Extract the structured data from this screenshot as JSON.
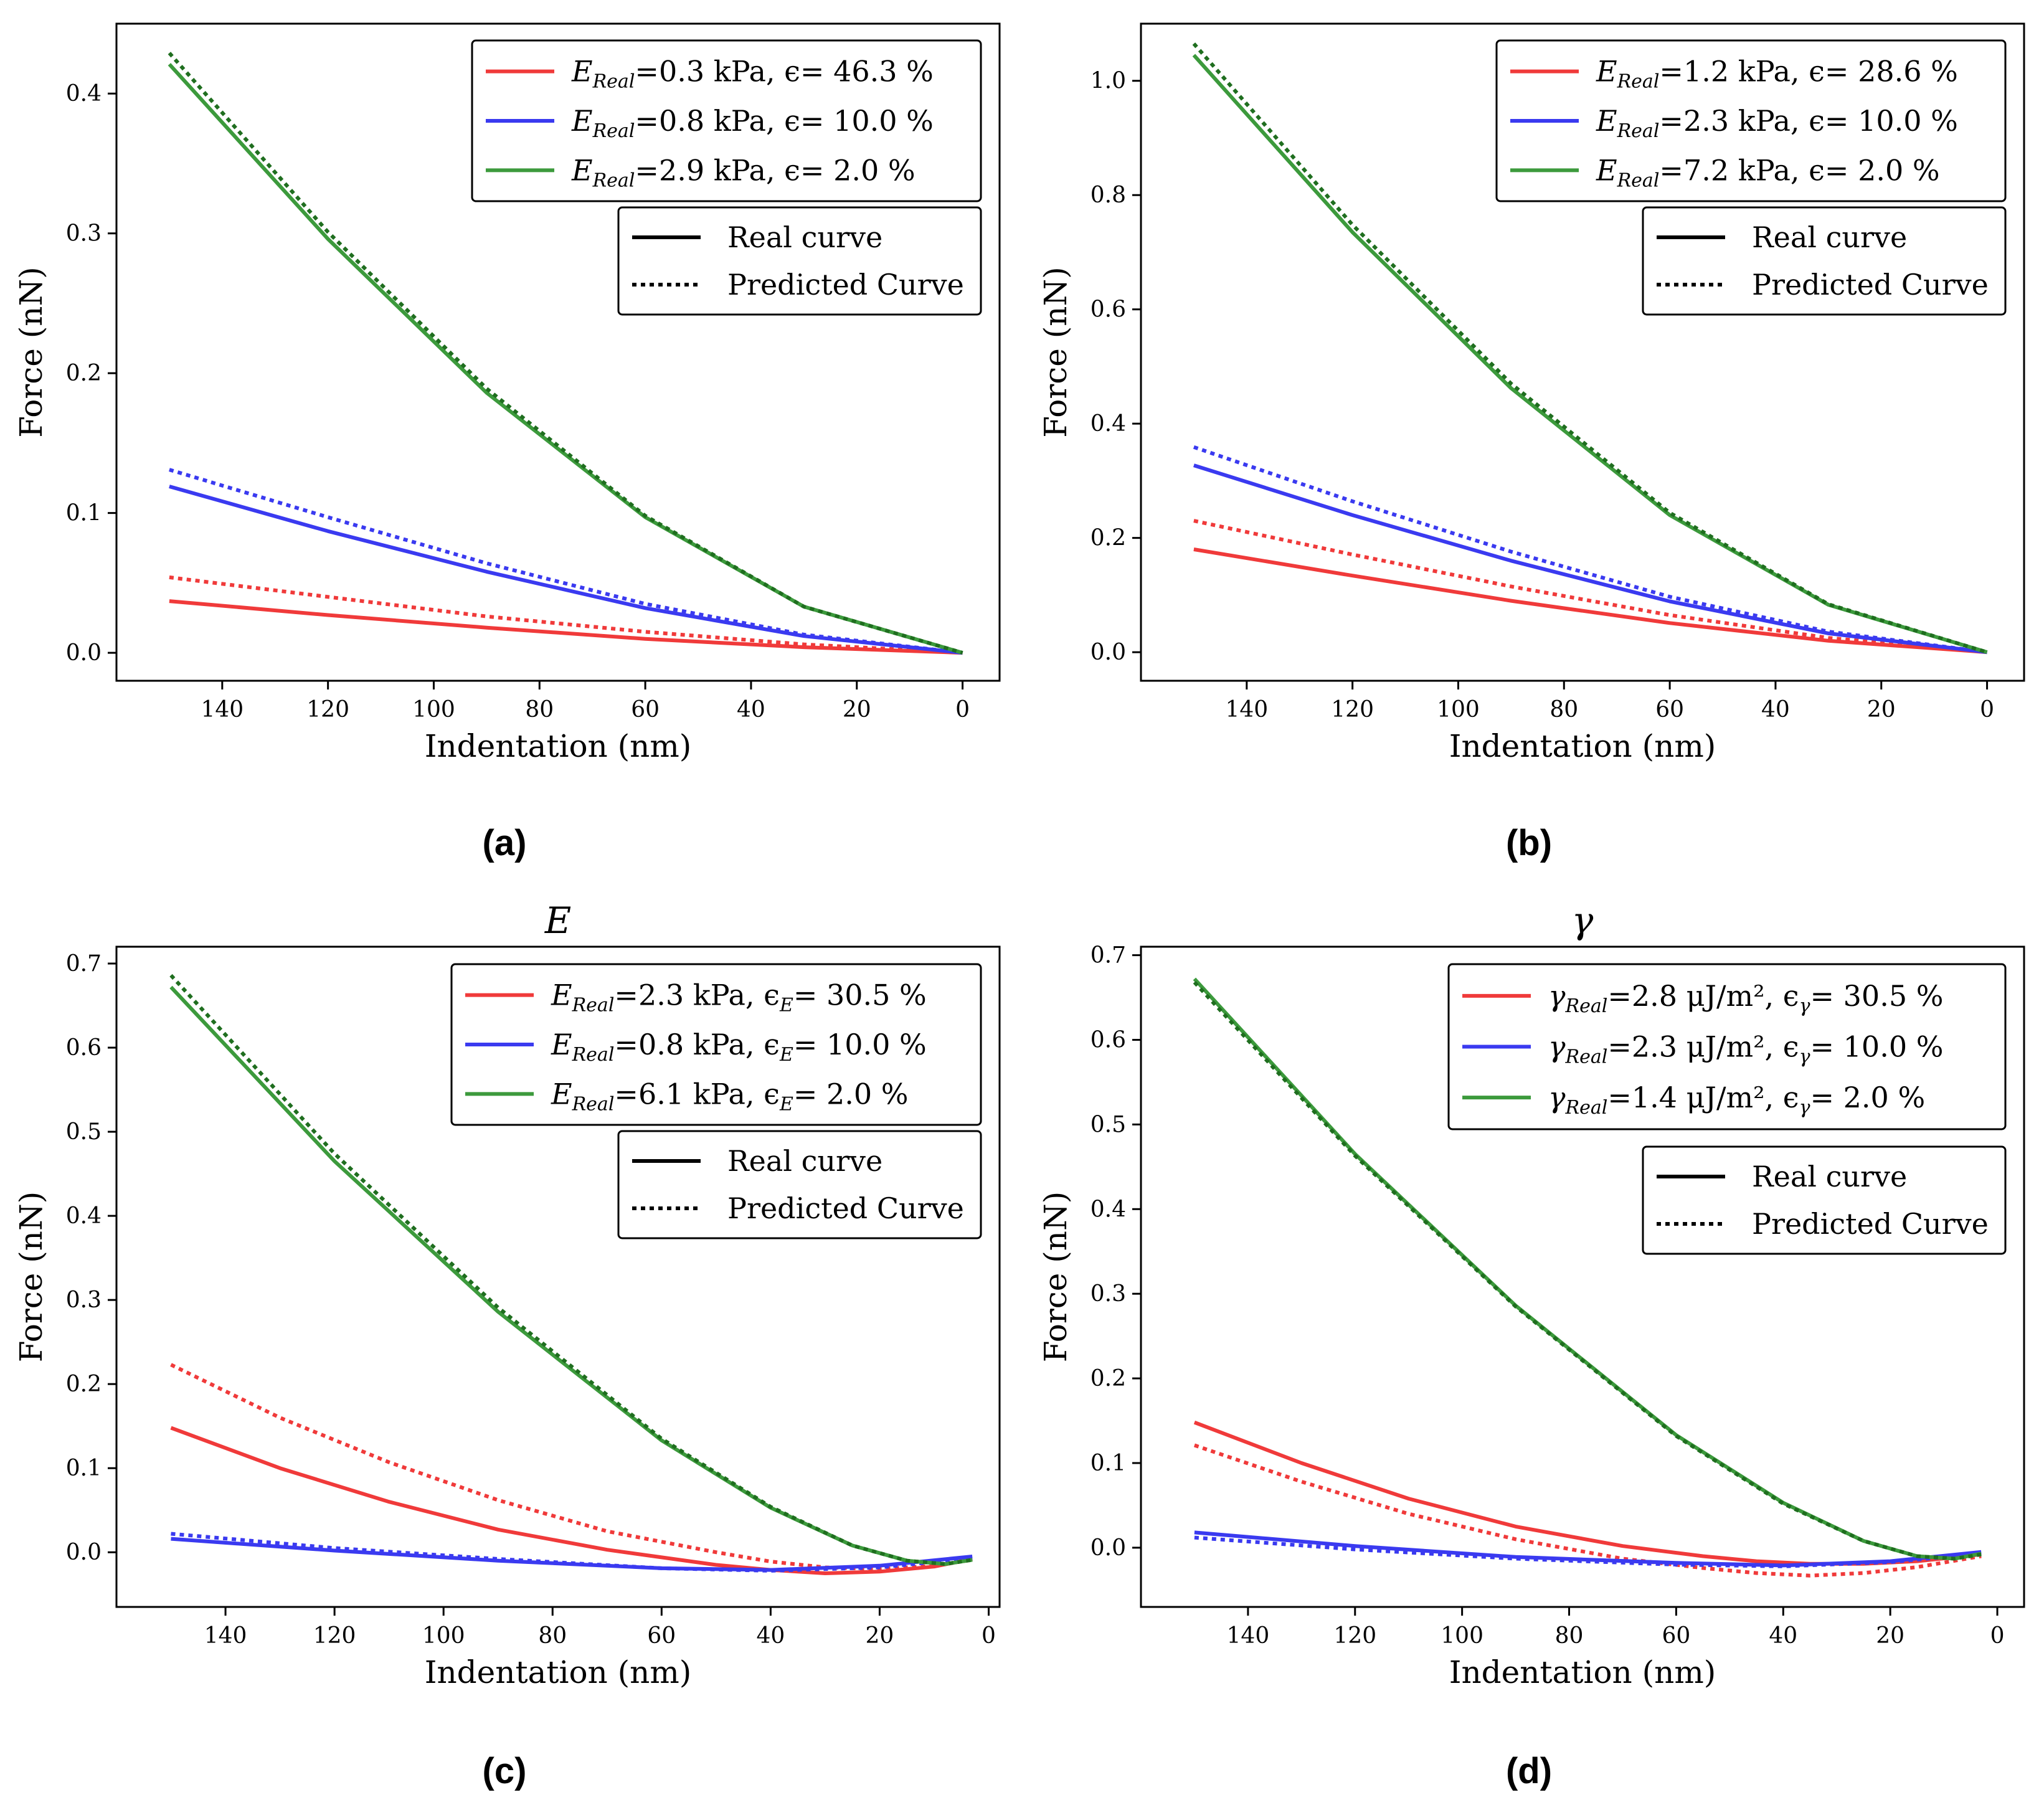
{
  "figure": {
    "panels": [
      {
        "id": "a",
        "caption": "(a)",
        "title": ""
      },
      {
        "id": "b",
        "caption": "(b)",
        "title": ""
      },
      {
        "id": "c",
        "caption": "(c)",
        "title": "E"
      },
      {
        "id": "d",
        "caption": "(d)",
        "title": "γ"
      }
    ]
  },
  "chart_data": [
    {
      "panel": "a",
      "type": "line",
      "title": "",
      "xlabel": "Indentation (nm)",
      "ylabel": "Force (nN)",
      "x_inverted": true,
      "xlim": [
        160,
        -7
      ],
      "ylim": [
        -0.02,
        0.45
      ],
      "xticks": [
        140,
        120,
        100,
        80,
        60,
        40,
        20,
        0
      ],
      "yticks": [
        0.0,
        0.1,
        0.2,
        0.3,
        0.4
      ],
      "ytick_decimals": 1,
      "legend_series": [
        {
          "label_sym": "E",
          "label_sub": "Real",
          "label_text": "=0.3 kPa, ϵ= 46.3 %",
          "color": "#f03a3a"
        },
        {
          "label_sym": "E",
          "label_sub": "Real",
          "label_text": "=0.8 kPa, ϵ= 10.0 %",
          "color": "#3a3af0"
        },
        {
          "label_sym": "E",
          "label_sub": "Real",
          "label_text": "=2.9 kPa, ϵ= 2.0 %",
          "color": "#3c9a3c"
        }
      ],
      "legend_style": [
        "Real curve",
        "Predicted Curve"
      ],
      "legend_placement": "top-right",
      "series": [
        {
          "name": "E_Real=0.3 kPa real",
          "color": "#f03a3a",
          "style": "solid",
          "x": [
            150,
            120,
            90,
            60,
            30,
            0
          ],
          "y": [
            0.037,
            0.027,
            0.018,
            0.01,
            0.004,
            0.0
          ]
        },
        {
          "name": "E_Real=0.3 kPa predicted",
          "color": "#f03a3a",
          "style": "dotted",
          "x": [
            150,
            120,
            90,
            60,
            30,
            0
          ],
          "y": [
            0.054,
            0.04,
            0.026,
            0.015,
            0.006,
            0.0
          ]
        },
        {
          "name": "E_Real=0.8 kPa real",
          "color": "#3a3af0",
          "style": "solid",
          "x": [
            150,
            120,
            90,
            60,
            30,
            0
          ],
          "y": [
            0.119,
            0.087,
            0.058,
            0.032,
            0.012,
            0.0
          ]
        },
        {
          "name": "E_Real=0.8 kPa predicted",
          "color": "#3a3af0",
          "style": "dotted",
          "x": [
            150,
            120,
            90,
            60,
            30,
            0
          ],
          "y": [
            0.131,
            0.097,
            0.064,
            0.035,
            0.013,
            0.0
          ]
        },
        {
          "name": "E_Real=2.9 kPa real",
          "color": "#3c9a3c",
          "style": "solid",
          "x": [
            150,
            120,
            90,
            60,
            30,
            0
          ],
          "y": [
            0.421,
            0.296,
            0.186,
            0.097,
            0.033,
            0.0
          ]
        },
        {
          "name": "E_Real=2.9 kPa predicted",
          "color": "#1f6e1f",
          "style": "dotted",
          "x": [
            150,
            120,
            90,
            60,
            30,
            0
          ],
          "y": [
            0.429,
            0.301,
            0.189,
            0.098,
            0.033,
            0.0
          ]
        }
      ]
    },
    {
      "panel": "b",
      "type": "line",
      "title": "",
      "xlabel": "Indentation (nm)",
      "ylabel": "Force (nN)",
      "x_inverted": true,
      "xlim": [
        160,
        -7
      ],
      "ylim": [
        -0.05,
        1.1
      ],
      "xticks": [
        140,
        120,
        100,
        80,
        60,
        40,
        20,
        0
      ],
      "yticks": [
        0.0,
        0.2,
        0.4,
        0.6,
        0.8,
        1.0
      ],
      "ytick_decimals": 1,
      "legend_series": [
        {
          "label_sym": "E",
          "label_sub": "Real",
          "label_text": "=1.2 kPa, ϵ= 28.6 %",
          "color": "#f03a3a"
        },
        {
          "label_sym": "E",
          "label_sub": "Real",
          "label_text": "=2.3 kPa, ϵ= 10.0 %",
          "color": "#3a3af0"
        },
        {
          "label_sym": "E",
          "label_sub": "Real",
          "label_text": "=7.2 kPa, ϵ= 2.0 %",
          "color": "#3c9a3c"
        }
      ],
      "legend_style": [
        "Real curve",
        "Predicted Curve"
      ],
      "legend_placement": "top-right",
      "series": [
        {
          "name": "E_Real=1.2 kPa real",
          "color": "#f03a3a",
          "style": "solid",
          "x": [
            150,
            120,
            90,
            60,
            30,
            0
          ],
          "y": [
            0.18,
            0.134,
            0.09,
            0.051,
            0.02,
            0.0
          ]
        },
        {
          "name": "E_Real=1.2 kPa predicted",
          "color": "#f03a3a",
          "style": "dotted",
          "x": [
            150,
            120,
            90,
            60,
            30,
            0
          ],
          "y": [
            0.23,
            0.171,
            0.115,
            0.065,
            0.025,
            0.0
          ]
        },
        {
          "name": "E_Real=2.3 kPa real",
          "color": "#3a3af0",
          "style": "solid",
          "x": [
            150,
            120,
            90,
            60,
            30,
            0
          ],
          "y": [
            0.327,
            0.24,
            0.16,
            0.089,
            0.033,
            0.0
          ]
        },
        {
          "name": "E_Real=2.3 kPa predicted",
          "color": "#3a3af0",
          "style": "dotted",
          "x": [
            150,
            120,
            90,
            60,
            30,
            0
          ],
          "y": [
            0.359,
            0.264,
            0.176,
            0.097,
            0.036,
            0.0
          ]
        },
        {
          "name": "E_Real=7.2 kPa real",
          "color": "#3c9a3c",
          "style": "solid",
          "x": [
            150,
            120,
            90,
            60,
            30,
            0
          ],
          "y": [
            1.045,
            0.735,
            0.462,
            0.24,
            0.083,
            0.0
          ]
        },
        {
          "name": "E_Real=7.2 kPa predicted",
          "color": "#1f6e1f",
          "style": "dotted",
          "x": [
            150,
            120,
            90,
            60,
            30,
            0
          ],
          "y": [
            1.065,
            0.748,
            0.47,
            0.244,
            0.084,
            0.0
          ]
        }
      ]
    },
    {
      "panel": "c",
      "type": "line",
      "title": "E",
      "xlabel": "Indentation (nm)",
      "ylabel": "Force (nN)",
      "x_inverted": true,
      "xlim": [
        160,
        -2
      ],
      "ylim": [
        -0.065,
        0.72
      ],
      "xticks": [
        140,
        120,
        100,
        80,
        60,
        40,
        20,
        0
      ],
      "yticks": [
        0.0,
        0.1,
        0.2,
        0.3,
        0.4,
        0.5,
        0.6,
        0.7
      ],
      "ytick_decimals": 1,
      "legend_series": [
        {
          "label_sym": "E",
          "label_sub": "Real",
          "label_text": "=2.3 kPa, ϵ",
          "label_sub2": "E",
          "label_text2": "= 30.5 %",
          "color": "#f03a3a"
        },
        {
          "label_sym": "E",
          "label_sub": "Real",
          "label_text": "=0.8 kPa, ϵ",
          "label_sub2": "E",
          "label_text2": "= 10.0 %",
          "color": "#3a3af0"
        },
        {
          "label_sym": "E",
          "label_sub": "Real",
          "label_text": "=6.1 kPa, ϵ",
          "label_sub2": "E",
          "label_text2": "= 2.0 %",
          "color": "#3c9a3c"
        }
      ],
      "legend_style": [
        "Real curve",
        "Predicted Curve"
      ],
      "legend_placement": "top-right",
      "series": [
        {
          "name": "E_Real=2.3 kPa real",
          "color": "#f03a3a",
          "style": "solid",
          "x": [
            150,
            130,
            110,
            90,
            70,
            50,
            40,
            30,
            20,
            10,
            3
          ],
          "y": [
            0.148,
            0.1,
            0.06,
            0.027,
            0.003,
            -0.015,
            -0.021,
            -0.025,
            -0.023,
            -0.017,
            -0.008
          ]
        },
        {
          "name": "E_Real=2.3 kPa predicted",
          "color": "#f03a3a",
          "style": "dotted",
          "x": [
            150,
            130,
            110,
            90,
            70,
            50,
            40,
            30,
            20,
            10,
            3
          ],
          "y": [
            0.223,
            0.16,
            0.107,
            0.062,
            0.025,
            0.0,
            -0.011,
            -0.018,
            -0.02,
            -0.016,
            -0.009
          ]
        },
        {
          "name": "E_Real=0.8 kPa real",
          "color": "#3a3af0",
          "style": "solid",
          "x": [
            150,
            120,
            90,
            60,
            40,
            20,
            3
          ],
          "y": [
            0.016,
            0.002,
            -0.01,
            -0.019,
            -0.021,
            -0.016,
            -0.005
          ]
        },
        {
          "name": "E_Real=0.8 kPa predicted",
          "color": "#3a3af0",
          "style": "dotted",
          "x": [
            150,
            120,
            90,
            60,
            40,
            20,
            3
          ],
          "y": [
            0.022,
            0.005,
            -0.008,
            -0.019,
            -0.022,
            -0.018,
            -0.007
          ]
        },
        {
          "name": "E_Real=6.1 kPa real",
          "color": "#3c9a3c",
          "style": "solid",
          "x": [
            150,
            120,
            90,
            60,
            40,
            25,
            15,
            8,
            3
          ],
          "y": [
            0.672,
            0.465,
            0.286,
            0.133,
            0.053,
            0.008,
            -0.01,
            -0.014,
            -0.009
          ]
        },
        {
          "name": "E_Real=6.1 kPa predicted",
          "color": "#1f6e1f",
          "style": "dotted",
          "x": [
            150,
            120,
            90,
            60,
            40,
            25,
            15,
            8,
            3
          ],
          "y": [
            0.686,
            0.474,
            0.291,
            0.135,
            0.054,
            0.008,
            -0.01,
            -0.014,
            -0.009
          ]
        }
      ]
    },
    {
      "panel": "d",
      "type": "line",
      "title": "γ",
      "xlabel": "Indentation (nm)",
      "ylabel": "Force (nN)",
      "x_inverted": true,
      "xlim": [
        160,
        -5
      ],
      "ylim": [
        -0.07,
        0.71
      ],
      "xticks": [
        140,
        120,
        100,
        80,
        60,
        40,
        20,
        0
      ],
      "yticks": [
        0.0,
        0.1,
        0.2,
        0.3,
        0.4,
        0.5,
        0.6,
        0.7
      ],
      "ytick_decimals": 1,
      "legend_series": [
        {
          "label_sym": "γ",
          "label_sub": "Real",
          "label_text": "=2.8 μJ/m², ϵ",
          "label_sub2": "γ",
          "label_text2": "= 30.5 %",
          "color": "#f03a3a"
        },
        {
          "label_sym": "γ",
          "label_sub": "Real",
          "label_text": "=2.3 μJ/m², ϵ",
          "label_sub2": "γ",
          "label_text2": "= 10.0 %",
          "color": "#3a3af0"
        },
        {
          "label_sym": "γ",
          "label_sub": "Real",
          "label_text": "=1.4 μJ/m², ϵ",
          "label_sub2": "γ",
          "label_text2": "= 2.0 %",
          "color": "#3c9a3c"
        }
      ],
      "legend_style": [
        "Real curve",
        "Predicted Curve"
      ],
      "legend_placement": "top-right",
      "series": [
        {
          "name": "γ_Real=2.8 real",
          "color": "#f03a3a",
          "style": "solid",
          "x": [
            150,
            130,
            110,
            90,
            70,
            55,
            45,
            35,
            25,
            15,
            3
          ],
          "y": [
            0.148,
            0.1,
            0.058,
            0.025,
            0.002,
            -0.01,
            -0.016,
            -0.019,
            -0.019,
            -0.016,
            -0.008
          ]
        },
        {
          "name": "γ_Real=2.8 predicted",
          "color": "#f03a3a",
          "style": "dotted",
          "x": [
            150,
            130,
            110,
            90,
            70,
            55,
            45,
            35,
            25,
            15,
            3
          ],
          "y": [
            0.121,
            0.078,
            0.04,
            0.01,
            -0.013,
            -0.024,
            -0.03,
            -0.033,
            -0.03,
            -0.023,
            -0.01
          ]
        },
        {
          "name": "γ_Real=2.3 real",
          "color": "#3a3af0",
          "style": "solid",
          "x": [
            150,
            120,
            90,
            60,
            40,
            20,
            3
          ],
          "y": [
            0.018,
            0.002,
            -0.011,
            -0.018,
            -0.021,
            -0.016,
            -0.005
          ]
        },
        {
          "name": "γ_Real=2.3 predicted",
          "color": "#3a3af0",
          "style": "dotted",
          "x": [
            150,
            120,
            90,
            60,
            40,
            20,
            3
          ],
          "y": [
            0.012,
            -0.002,
            -0.013,
            -0.02,
            -0.022,
            -0.017,
            -0.007
          ]
        },
        {
          "name": "γ_Real=1.4 real",
          "color": "#3c9a3c",
          "style": "solid",
          "x": [
            150,
            120,
            90,
            60,
            40,
            25,
            15,
            8,
            3
          ],
          "y": [
            0.672,
            0.465,
            0.286,
            0.133,
            0.053,
            0.008,
            -0.01,
            -0.013,
            -0.007
          ]
        },
        {
          "name": "γ_Real=1.4 predicted",
          "color": "#1f6e1f",
          "style": "dotted",
          "x": [
            150,
            120,
            90,
            60,
            40,
            25,
            15,
            8,
            3
          ],
          "y": [
            0.668,
            0.463,
            0.285,
            0.132,
            0.052,
            0.008,
            -0.01,
            -0.013,
            -0.008
          ]
        }
      ]
    }
  ]
}
